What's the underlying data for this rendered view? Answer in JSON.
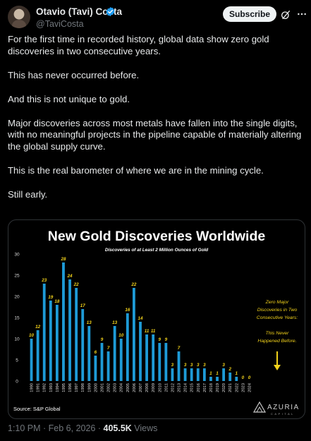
{
  "author": {
    "name": "Otavio (Tavi) Costa",
    "handle": "@TaviCosta",
    "verified_color": "#1d9bf0"
  },
  "header": {
    "subscribe_label": "Subscribe",
    "grok_icon": "grok-icon",
    "more_icon": "more-icon"
  },
  "tweet": {
    "paragraphs": [
      "For the first time in recorded history, global data show zero gold discoveries in two consecutive years.",
      "This has never occurred before.",
      "And this is not unique to gold.",
      "Major discoveries across most metals have fallen into the single digits, with no meaningful projects in the pipeline capable of materially altering the global supply curve.",
      "This is the real barometer of where we are in the mining cycle.",
      "Still early."
    ]
  },
  "chart_data": {
    "type": "bar",
    "title": "New Gold Discoveries Worldwide",
    "subtitle": "Discoveries of at Least 2 Million Ounces of Gold",
    "categories": [
      "1990",
      "1991",
      "1992",
      "1993",
      "1994",
      "1995",
      "1996",
      "1997",
      "1998",
      "1999",
      "2000",
      "2001",
      "2002",
      "2003",
      "2004",
      "2005",
      "2006",
      "2007",
      "2008",
      "2009",
      "2010",
      "2011",
      "2012",
      "2013",
      "2014",
      "2015",
      "2016",
      "2017",
      "2018",
      "2019",
      "2020",
      "2021",
      "2022",
      "2023",
      "2024"
    ],
    "values": [
      10,
      12,
      23,
      19,
      18,
      28,
      24,
      22,
      17,
      13,
      6,
      9,
      7,
      13,
      10,
      16,
      22,
      14,
      11,
      11,
      9,
      9,
      3,
      7,
      3,
      3,
      3,
      3,
      1,
      1,
      3,
      2,
      1,
      0,
      0
    ],
    "ylim": [
      0,
      30
    ],
    "yticks": [
      0,
      5,
      10,
      15,
      20,
      25,
      30
    ],
    "grid": false,
    "bar_color": "#1e9bd7",
    "label_color": "#f2d21b",
    "annotation": [
      "Zero Major",
      "Discoveries in Two",
      "Consecutive Years:",
      "",
      "This Never",
      "Happened Before."
    ],
    "source": "Source: S&P Global",
    "brand": "AZURIA",
    "brand_sub": "CAPITAL"
  },
  "footer": {
    "time": "1:10 PM · Feb 6, 2026 · ",
    "views": "405.5K",
    "views_label": " Views"
  }
}
